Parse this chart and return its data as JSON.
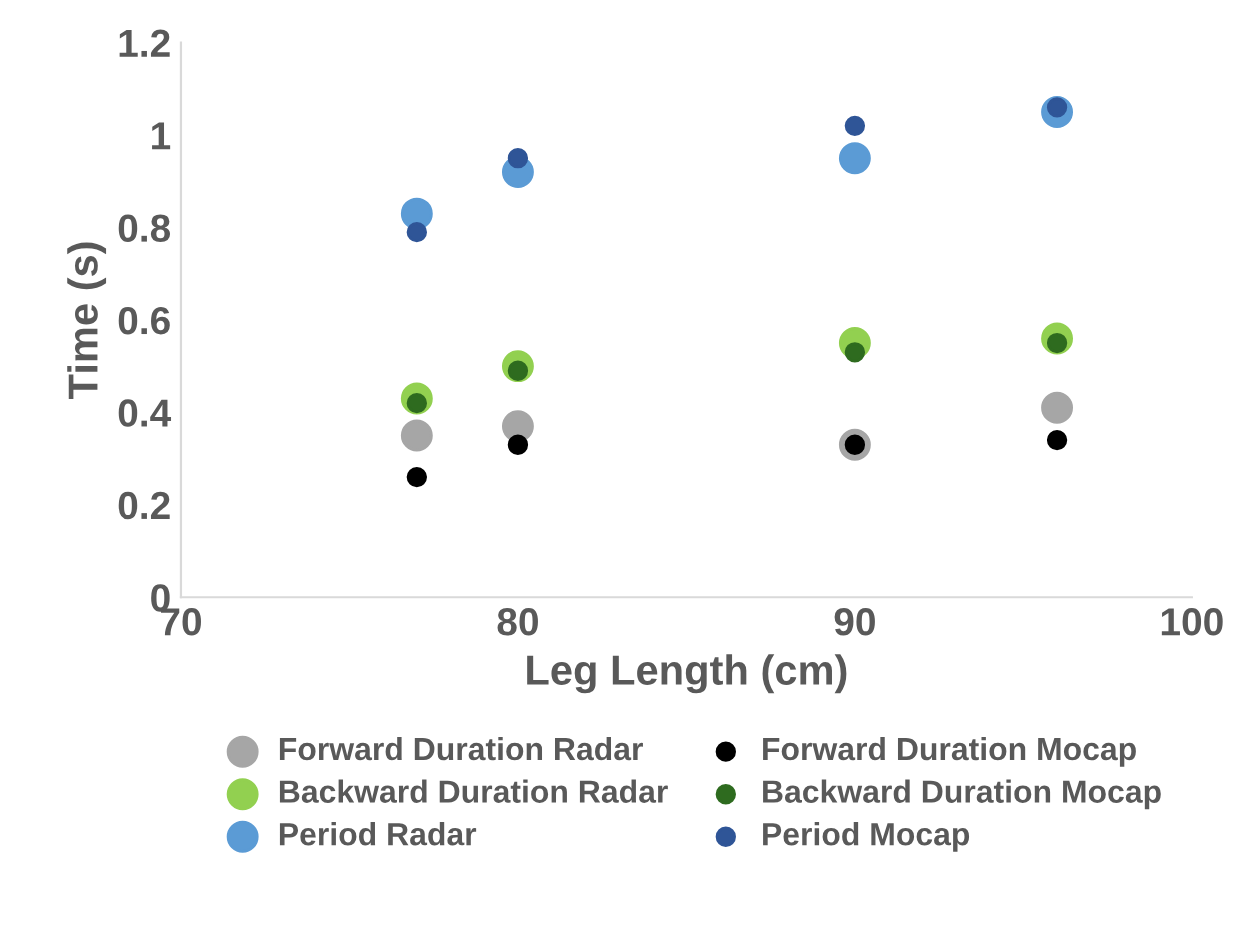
{
  "chart_data": {
    "type": "scatter",
    "xlabel": "Leg Length (cm)",
    "ylabel": "Time (s)",
    "x": [
      77,
      80,
      90,
      96
    ],
    "series": [
      {
        "name": "Forward Duration Radar",
        "color": "#a6a6a6",
        "values": [
          0.35,
          0.37,
          0.33,
          0.41
        ]
      },
      {
        "name": "Forward Duration Mocap",
        "color": "#000000",
        "values": [
          0.26,
          0.33,
          0.33,
          0.34
        ]
      },
      {
        "name": "Backward Duration Radar",
        "color": "#92d050",
        "values": [
          0.43,
          0.5,
          0.55,
          0.56
        ]
      },
      {
        "name": "Backward Duration Mocap",
        "color": "#2e6b1f",
        "values": [
          0.42,
          0.49,
          0.53,
          0.55
        ]
      },
      {
        "name": "Period Radar",
        "color": "#5b9bd5",
        "values": [
          0.83,
          0.92,
          0.95,
          1.05
        ]
      },
      {
        "name": "Period Mocap",
        "color": "#2f5597",
        "values": [
          0.79,
          0.95,
          1.02,
          1.06
        ]
      }
    ],
    "xlim": [
      70,
      100
    ],
    "xticks": [
      70,
      80,
      90,
      100
    ],
    "ylim": [
      0,
      1.2
    ],
    "yticks": [
      0,
      0.2,
      0.4,
      0.6,
      0.8,
      1,
      1.2
    ],
    "grid": false,
    "legend": "bottom",
    "marker": "circle"
  }
}
